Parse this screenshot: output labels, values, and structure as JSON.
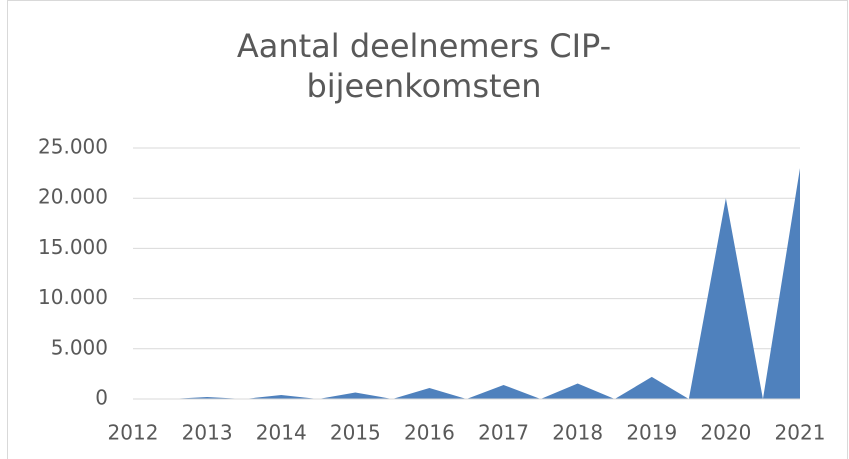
{
  "chart_data": {
    "type": "area",
    "title": "Aantal deelnemers CIP-bijeenkomsten",
    "categories": [
      "2012",
      null,
      "2013",
      null,
      "2014",
      null,
      "2015",
      null,
      "2016",
      null,
      "2017",
      null,
      "2018",
      null,
      "2019",
      null,
      "2020",
      null,
      "2021"
    ],
    "values": [
      0,
      0,
      200,
      0,
      400,
      0,
      650,
      0,
      1100,
      0,
      1400,
      0,
      1550,
      0,
      2200,
      0,
      20000,
      0,
      23000
    ],
    "color": "#4f81bd",
    "ylim": [
      0,
      25000
    ],
    "yticks": [
      0,
      {
        "value": 5000,
        "label": "5.000"
      },
      {
        "value": 10000,
        "label": "10.000"
      },
      {
        "value": 15000,
        "label": "15.000"
      },
      {
        "value": 20000,
        "label": "20.000"
      },
      {
        "value": 25000,
        "label": "25.000"
      }
    ],
    "grid": true
  }
}
